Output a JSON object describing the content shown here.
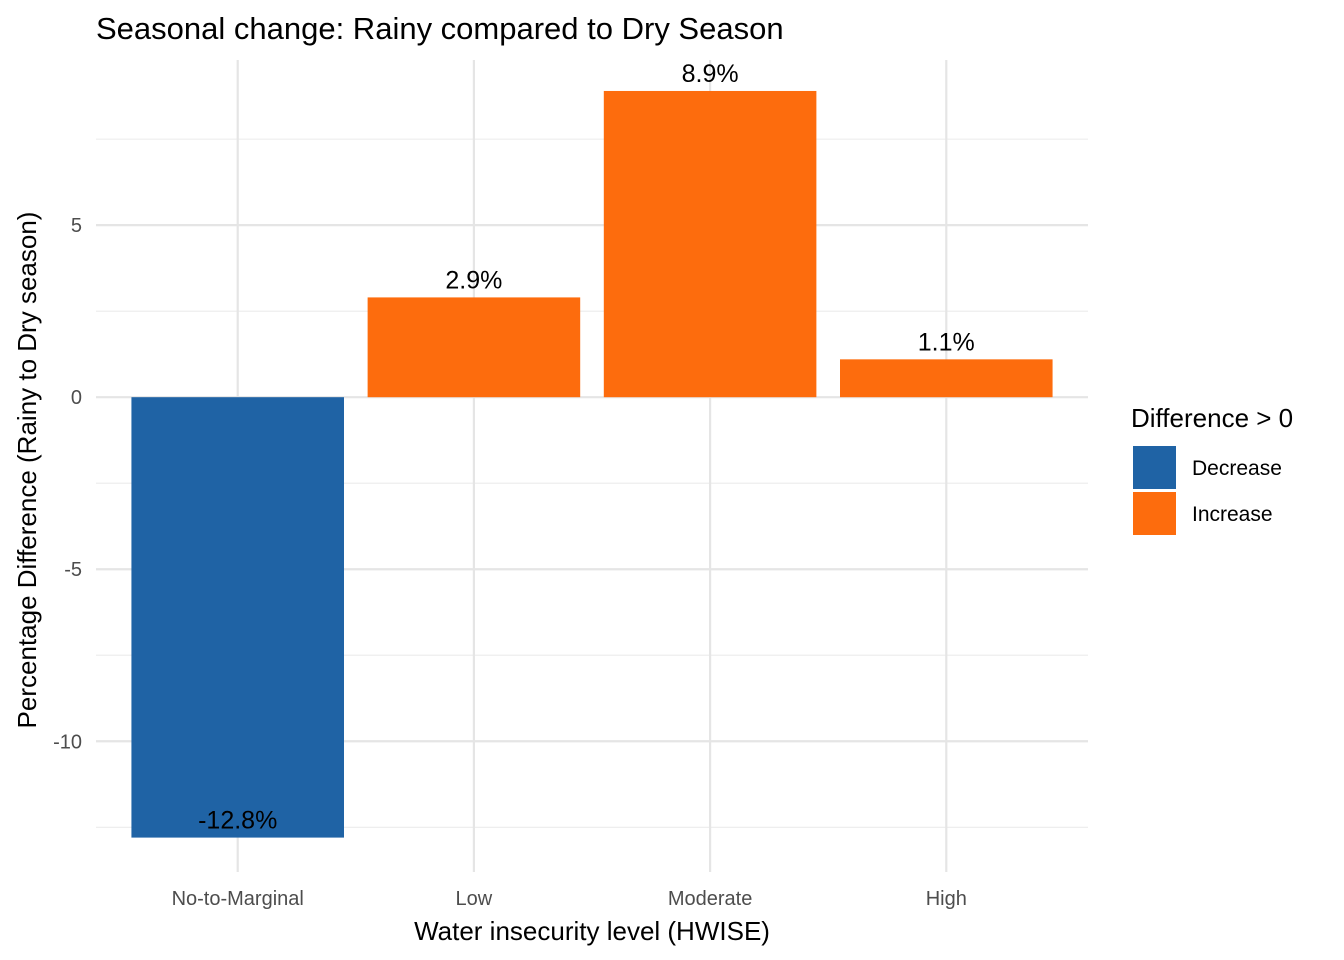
{
  "chart_data": {
    "type": "bar",
    "title": "Seasonal change: Rainy compared to Dry Season",
    "xlabel": "Water insecurity level (HWISE)",
    "ylabel": "Percentage Difference (Rainy to Dry season)",
    "categories": [
      "No-to-Marginal",
      "Low",
      "Moderate",
      "High"
    ],
    "values": [
      -12.8,
      2.9,
      8.9,
      1.1
    ],
    "value_labels": [
      "-12.8%",
      "2.9%",
      "8.9%",
      "1.1%"
    ],
    "fill_group": [
      "Decrease",
      "Increase",
      "Increase",
      "Increase"
    ],
    "y_ticks": [
      -10,
      -5,
      0,
      5
    ],
    "y_tick_labels": [
      "-10",
      "-5",
      "0",
      "5"
    ],
    "ylim": [
      -13.8,
      9.8
    ],
    "grid": true,
    "legend": {
      "title": "Difference > 0",
      "position": "right",
      "items": [
        {
          "label": "Decrease",
          "color": "#1f63a5"
        },
        {
          "label": "Increase",
          "color": "#fd6c0d"
        }
      ]
    }
  }
}
